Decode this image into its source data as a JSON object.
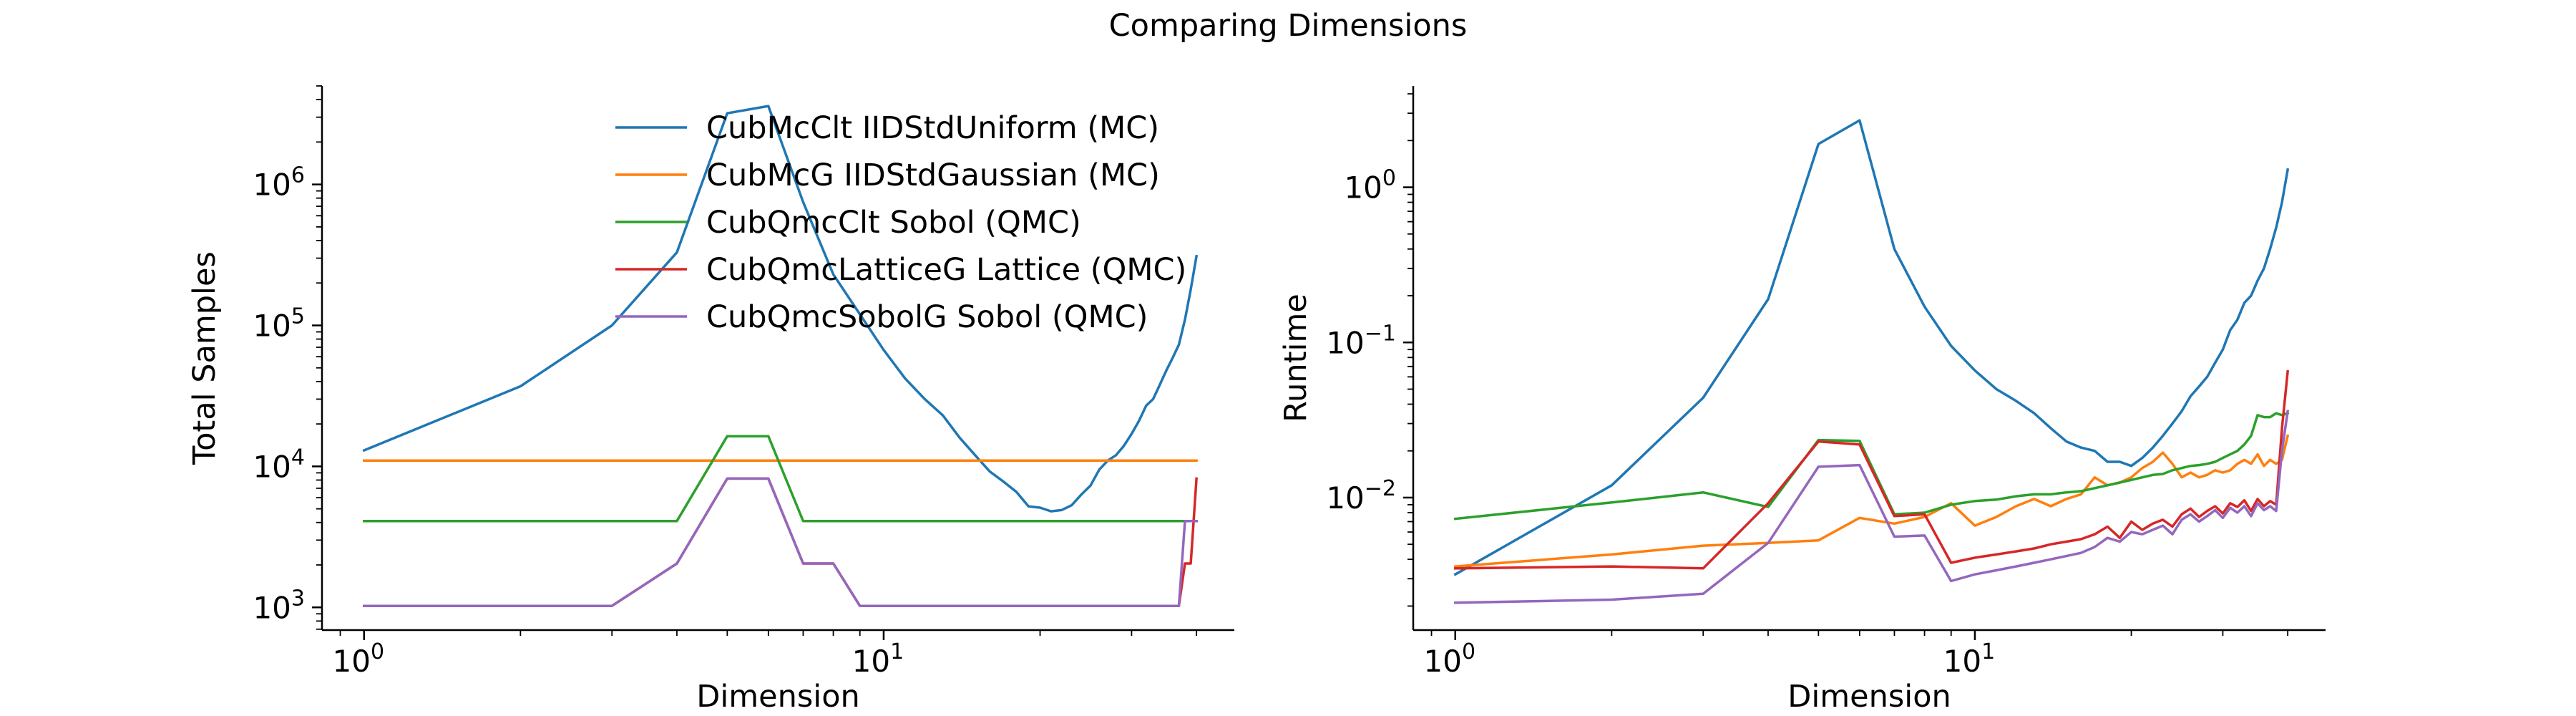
{
  "figure": {
    "title": "Comparing Dimensions"
  },
  "colors": {
    "blue": "#1f77b4",
    "orange": "#ff7f0e",
    "green": "#2ca02c",
    "red": "#d62728",
    "purple": "#9467bd"
  },
  "chart_data": [
    {
      "type": "line",
      "xlabel": "Dimension",
      "ylabel": "Total Samples",
      "xscale": "log",
      "yscale": "log",
      "xlim": [
        0.83,
        47.3
      ],
      "ylim": [
        690,
        5000000
      ],
      "xticks": [
        {
          "value": 1,
          "label": "10",
          "exp": "0"
        },
        {
          "value": 10,
          "label": "10",
          "exp": "1"
        }
      ],
      "yticks": [
        {
          "value": 1000,
          "label": "10",
          "exp": "3"
        },
        {
          "value": 10000,
          "label": "10",
          "exp": "4"
        },
        {
          "value": 100000,
          "label": "10",
          "exp": "5"
        },
        {
          "value": 1000000,
          "label": "10",
          "exp": "6"
        }
      ],
      "grid": false,
      "legend_position": "top-right",
      "series": [
        {
          "name": "CubMcClt IIDStdUniform (MC)",
          "color": "#1f77b4",
          "x": [
            1,
            2,
            3,
            4,
            5,
            6,
            7,
            8,
            9,
            10,
            11,
            12,
            13,
            14,
            15,
            16,
            17,
            18,
            19,
            20,
            21,
            22,
            23,
            24,
            25,
            26,
            27,
            28,
            29,
            30,
            31,
            32,
            33,
            34,
            35,
            36,
            37,
            38,
            39,
            40
          ],
          "y": [
            13000,
            37000,
            100000,
            330000,
            3200000,
            3600000,
            750000,
            230000,
            120000,
            67000,
            42000,
            30000,
            23000,
            16000,
            12000,
            9200,
            7800,
            6600,
            5200,
            5100,
            4800,
            4900,
            5300,
            6300,
            7300,
            9500,
            11000,
            12000,
            14000,
            17000,
            21000,
            27000,
            30000,
            38000,
            48000,
            59000,
            73000,
            110000,
            180000,
            310000
          ]
        },
        {
          "name": "CubMcG IIDStdGaussian (MC)",
          "color": "#ff7f0e",
          "x": [
            1,
            40
          ],
          "y": [
            11000,
            11000
          ]
        },
        {
          "name": "CubQmcClt Sobol (QMC)",
          "color": "#2ca02c",
          "x": [
            1,
            2,
            3,
            4,
            5,
            6,
            7,
            8,
            9,
            10,
            20,
            40
          ],
          "y": [
            4096,
            4096,
            4096,
            4096,
            16384,
            16384,
            4096,
            4096,
            4096,
            4096,
            4096,
            4096
          ]
        },
        {
          "name": "CubQmcLatticeG Lattice (QMC)",
          "color": "#d62728",
          "x": [
            1,
            2,
            3,
            4,
            5,
            6,
            7,
            8,
            9,
            10,
            20,
            37,
            38,
            39,
            40
          ],
          "y": [
            1024,
            1024,
            1024,
            2048,
            8192,
            8192,
            2048,
            2048,
            1024,
            1024,
            1024,
            1024,
            2048,
            2048,
            8192
          ]
        },
        {
          "name": "CubQmcSobolG Sobol (QMC)",
          "color": "#9467bd",
          "x": [
            1,
            2,
            3,
            4,
            5,
            6,
            7,
            8,
            9,
            10,
            20,
            37,
            38,
            39,
            40
          ],
          "y": [
            1024,
            1024,
            1024,
            2048,
            8192,
            8192,
            2048,
            2048,
            1024,
            1024,
            1024,
            1024,
            4096,
            4096,
            4096
          ]
        }
      ]
    },
    {
      "type": "line",
      "xlabel": "Dimension",
      "ylabel": "Runtime",
      "xscale": "log",
      "yscale": "log",
      "xlim": [
        0.83,
        47.3
      ],
      "ylim": [
        0.0014,
        4.5
      ],
      "xticks": [
        {
          "value": 1,
          "label": "10",
          "exp": "0"
        },
        {
          "value": 10,
          "label": "10",
          "exp": "1"
        }
      ],
      "yticks": [
        {
          "value": 0.01,
          "label": "10",
          "exp": "−2"
        },
        {
          "value": 0.1,
          "label": "10",
          "exp": "−1"
        },
        {
          "value": 1,
          "label": "10",
          "exp": "0"
        }
      ],
      "grid": false,
      "series": [
        {
          "name": "CubMcClt IIDStdUniform (MC)",
          "color": "#1f77b4",
          "x": [
            1,
            2,
            3,
            4,
            5,
            6,
            7,
            8,
            9,
            10,
            11,
            12,
            13,
            14,
            15,
            16,
            17,
            18,
            19,
            20,
            21,
            22,
            23,
            24,
            25,
            26,
            27,
            28,
            29,
            30,
            31,
            32,
            33,
            34,
            35,
            36,
            37,
            38,
            39,
            40
          ],
          "y": [
            0.0032,
            0.012,
            0.044,
            0.19,
            1.9,
            2.7,
            0.4,
            0.17,
            0.095,
            0.066,
            0.05,
            0.042,
            0.035,
            0.028,
            0.023,
            0.021,
            0.02,
            0.017,
            0.017,
            0.016,
            0.018,
            0.021,
            0.025,
            0.03,
            0.036,
            0.045,
            0.052,
            0.06,
            0.074,
            0.09,
            0.12,
            0.14,
            0.18,
            0.2,
            0.25,
            0.3,
            0.4,
            0.55,
            0.8,
            1.3
          ]
        },
        {
          "name": "CubMcG IIDStdGaussian (MC)",
          "color": "#ff7f0e",
          "x": [
            1,
            2,
            3,
            4,
            5,
            6,
            7,
            8,
            9,
            10,
            11,
            12,
            13,
            14,
            15,
            16,
            17,
            18,
            19,
            20,
            21,
            22,
            23,
            24,
            25,
            26,
            27,
            28,
            29,
            30,
            31,
            32,
            33,
            34,
            35,
            36,
            37,
            38,
            39,
            40
          ],
          "y": [
            0.0036,
            0.0043,
            0.0049,
            0.0051,
            0.0053,
            0.0074,
            0.0068,
            0.0075,
            0.0092,
            0.0066,
            0.0075,
            0.0088,
            0.0098,
            0.0088,
            0.0098,
            0.0105,
            0.0135,
            0.012,
            0.0125,
            0.0135,
            0.0155,
            0.017,
            0.0195,
            0.0165,
            0.0135,
            0.0145,
            0.0135,
            0.014,
            0.015,
            0.0145,
            0.015,
            0.0165,
            0.0175,
            0.0165,
            0.019,
            0.016,
            0.0175,
            0.0165,
            0.0175,
            0.025
          ]
        },
        {
          "name": "CubQmcClt Sobol (QMC)",
          "color": "#2ca02c",
          "x": [
            1,
            2,
            3,
            4,
            5,
            6,
            7,
            8,
            9,
            10,
            11,
            12,
            13,
            14,
            15,
            16,
            17,
            18,
            19,
            20,
            21,
            22,
            23,
            24,
            25,
            26,
            27,
            28,
            29,
            30,
            31,
            32,
            33,
            34,
            35,
            36,
            37,
            38,
            39,
            40
          ],
          "y": [
            0.0073,
            0.0093,
            0.0108,
            0.0087,
            0.0235,
            0.0232,
            0.0078,
            0.008,
            0.009,
            0.0095,
            0.0097,
            0.0102,
            0.0105,
            0.0105,
            0.0108,
            0.011,
            0.0115,
            0.012,
            0.0125,
            0.013,
            0.0135,
            0.014,
            0.0142,
            0.015,
            0.0155,
            0.016,
            0.0162,
            0.0165,
            0.017,
            0.018,
            0.019,
            0.02,
            0.022,
            0.025,
            0.034,
            0.033,
            0.033,
            0.035,
            0.034,
            0.035
          ]
        },
        {
          "name": "CubQmcLatticeG Lattice (QMC)",
          "color": "#d62728",
          "x": [
            1,
            2,
            3,
            4,
            5,
            6,
            7,
            8,
            9,
            10,
            11,
            12,
            13,
            14,
            15,
            16,
            17,
            18,
            19,
            20,
            21,
            22,
            23,
            24,
            25,
            26,
            27,
            28,
            29,
            30,
            31,
            32,
            33,
            34,
            35,
            36,
            37,
            38,
            39,
            40
          ],
          "y": [
            0.0035,
            0.0036,
            0.0035,
            0.0092,
            0.023,
            0.022,
            0.0076,
            0.0078,
            0.0038,
            0.0041,
            0.0043,
            0.0045,
            0.0047,
            0.005,
            0.0052,
            0.0054,
            0.0058,
            0.0065,
            0.0055,
            0.007,
            0.0062,
            0.0068,
            0.0072,
            0.0065,
            0.0078,
            0.0085,
            0.0075,
            0.0082,
            0.0088,
            0.0079,
            0.0092,
            0.0087,
            0.0096,
            0.0082,
            0.0098,
            0.0088,
            0.0095,
            0.009,
            0.028,
            0.065
          ]
        },
        {
          "name": "CubQmcSobolG Sobol (QMC)",
          "color": "#9467bd",
          "x": [
            1,
            2,
            3,
            4,
            5,
            6,
            7,
            8,
            9,
            10,
            11,
            12,
            13,
            14,
            15,
            16,
            17,
            18,
            19,
            20,
            21,
            22,
            23,
            24,
            25,
            26,
            27,
            28,
            29,
            30,
            31,
            32,
            33,
            34,
            35,
            36,
            37,
            38,
            39,
            40
          ],
          "y": [
            0.0021,
            0.0022,
            0.0024,
            0.0051,
            0.0158,
            0.0162,
            0.0056,
            0.0057,
            0.0029,
            0.0032,
            0.0034,
            0.0036,
            0.0038,
            0.004,
            0.0042,
            0.0044,
            0.0048,
            0.0055,
            0.0052,
            0.006,
            0.0058,
            0.0062,
            0.0066,
            0.0058,
            0.0072,
            0.0078,
            0.007,
            0.0076,
            0.0083,
            0.0074,
            0.0086,
            0.008,
            0.0088,
            0.0076,
            0.0092,
            0.0083,
            0.0088,
            0.0082,
            0.02,
            0.036
          ]
        }
      ]
    }
  ]
}
